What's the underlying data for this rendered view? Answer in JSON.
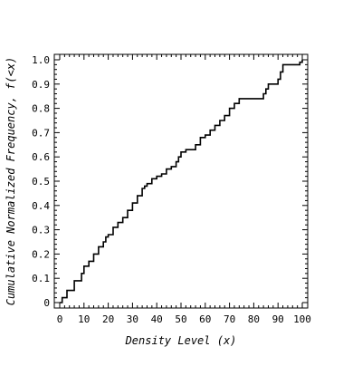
{
  "chart_data": {
    "type": "line",
    "title": "",
    "xlabel": "Density Level (x)",
    "ylabel": "Cumulative Normalized Frequency, f(<x)",
    "xlim": [
      0,
      100
    ],
    "ylim": [
      0,
      1.0
    ],
    "x_ticks": [
      0,
      10,
      20,
      30,
      40,
      50,
      60,
      70,
      80,
      90,
      100
    ],
    "y_ticks": [
      0,
      0.1,
      0.2,
      0.3,
      0.4,
      0.5,
      0.6,
      0.7,
      0.8,
      0.9,
      1.0
    ],
    "x_tick_labels": [
      "0",
      "10",
      "20",
      "30",
      "40",
      "50",
      "60",
      "70",
      "80",
      "90",
      "100"
    ],
    "y_tick_labels": [
      "0",
      "0.1",
      "0.2",
      "0.3",
      "0.4",
      "0.5",
      "0.6",
      "0.7",
      "0.8",
      "0.9",
      "1.0"
    ],
    "grid": false,
    "line_color": "#000000",
    "series": [
      {
        "style": "step",
        "x": [
          0,
          1,
          3,
          6,
          9,
          10,
          12,
          14,
          16,
          18,
          19,
          20,
          22,
          24,
          26,
          28,
          30,
          32,
          34,
          35,
          36,
          38,
          40,
          42,
          44,
          46,
          48,
          49,
          50,
          52,
          54,
          56,
          58,
          60,
          62,
          64,
          66,
          68,
          70,
          72,
          74,
          76,
          78,
          80,
          82,
          84,
          85,
          86,
          88,
          90,
          91,
          92,
          94,
          96,
          98,
          99,
          100
        ],
        "y": [
          0.0,
          0.02,
          0.05,
          0.09,
          0.12,
          0.15,
          0.17,
          0.2,
          0.23,
          0.25,
          0.27,
          0.28,
          0.31,
          0.33,
          0.35,
          0.38,
          0.41,
          0.44,
          0.47,
          0.48,
          0.49,
          0.51,
          0.52,
          0.53,
          0.55,
          0.56,
          0.58,
          0.6,
          0.62,
          0.63,
          0.63,
          0.65,
          0.68,
          0.69,
          0.71,
          0.73,
          0.75,
          0.77,
          0.8,
          0.82,
          0.84,
          0.84,
          0.84,
          0.84,
          0.84,
          0.86,
          0.88,
          0.9,
          0.9,
          0.92,
          0.95,
          0.98,
          0.98,
          0.98,
          0.98,
          0.99,
          1.0
        ]
      }
    ]
  }
}
